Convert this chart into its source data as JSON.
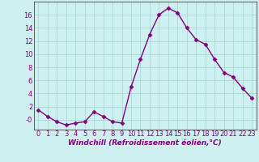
{
  "x": [
    0,
    1,
    2,
    3,
    4,
    5,
    6,
    7,
    8,
    9,
    10,
    11,
    12,
    13,
    14,
    15,
    16,
    17,
    18,
    19,
    20,
    21,
    22,
    23
  ],
  "y": [
    1.5,
    0.5,
    -0.3,
    -0.8,
    -0.5,
    -0.3,
    1.2,
    0.5,
    -0.3,
    -0.5,
    5.0,
    9.2,
    13.0,
    16.0,
    17.0,
    16.3,
    14.0,
    12.2,
    11.5,
    9.2,
    7.2,
    6.5,
    4.8,
    3.3
  ],
  "line_color": "#800080",
  "marker": "D",
  "marker_size": 2.5,
  "bg_color": "#cff0f0",
  "grid_color": "#aad8d8",
  "xlabel": "Windchill (Refroidissement éolien,°C)",
  "xlim": [
    -0.5,
    23.5
  ],
  "ylim": [
    -1.5,
    18
  ],
  "yticks": [
    0,
    2,
    4,
    6,
    8,
    10,
    12,
    14,
    16
  ],
  "xticks": [
    0,
    1,
    2,
    3,
    4,
    5,
    6,
    7,
    8,
    9,
    10,
    11,
    12,
    13,
    14,
    15,
    16,
    17,
    18,
    19,
    20,
    21,
    22,
    23
  ],
  "xlabel_fontsize": 6.5,
  "tick_fontsize": 6,
  "line_width": 1.0,
  "spine_color": "#666666"
}
